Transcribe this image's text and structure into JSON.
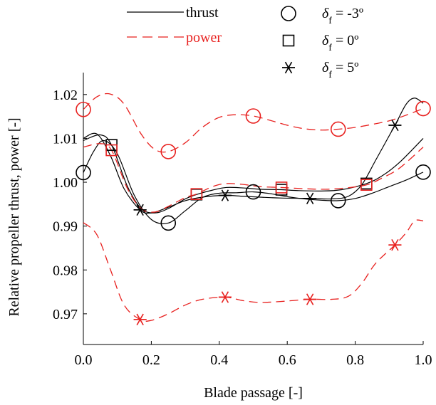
{
  "chart_data": {
    "type": "line",
    "xlabel": "Blade passage [-]",
    "ylabel": "Relative propeller thrust, power [-]",
    "xlim": [
      0.0,
      1.0
    ],
    "ylim": [
      0.963,
      1.025
    ],
    "xticks": [
      "0.0",
      "0.2",
      "0.4",
      "0.6",
      "0.8",
      "1.0"
    ],
    "yticks": [
      "0.97",
      "0.98",
      "0.99",
      "1.00",
      "1.01",
      "1.02"
    ],
    "grid": false,
    "legend": {
      "lines": [
        {
          "label": "thrust",
          "style": "solid",
          "color": "#000000"
        },
        {
          "label": "power",
          "style": "dashed",
          "color": "#e8211f"
        }
      ],
      "markers": [
        {
          "symbol": "circle",
          "prefix": "δ",
          "sub": "f",
          "value": " = -3º"
        },
        {
          "symbol": "square",
          "prefix": "δ",
          "sub": "f",
          "value": " =   0º"
        },
        {
          "symbol": "asterisk",
          "prefix": "δ",
          "sub": "f",
          "value": " =   5º"
        }
      ]
    },
    "colors": {
      "thrust": "#000000",
      "power": "#e8211f"
    },
    "series": [
      {
        "quantity": "thrust",
        "marker": "circle",
        "points": [
          [
            0.0,
            1.0022
          ],
          [
            0.25,
            0.9907
          ],
          [
            0.5,
            0.9978
          ],
          [
            0.75,
            0.9958
          ],
          [
            1.0,
            1.0023
          ]
        ],
        "curve": [
          [
            0.0,
            1.0022
          ],
          [
            0.03,
            1.007
          ],
          [
            0.06,
            1.0095
          ],
          [
            0.1,
            1.0065
          ],
          [
            0.15,
            0.997
          ],
          [
            0.2,
            0.9915
          ],
          [
            0.25,
            0.9907
          ],
          [
            0.3,
            0.9935
          ],
          [
            0.35,
            0.9965
          ],
          [
            0.4,
            0.9975
          ],
          [
            0.45,
            0.9976
          ],
          [
            0.5,
            0.9978
          ],
          [
            0.55,
            0.9974
          ],
          [
            0.6,
            0.9967
          ],
          [
            0.65,
            0.9962
          ],
          [
            0.7,
            0.9959
          ],
          [
            0.75,
            0.9958
          ],
          [
            0.8,
            0.9963
          ],
          [
            0.85,
            0.9975
          ],
          [
            0.9,
            0.999
          ],
          [
            0.95,
            1.0005
          ],
          [
            1.0,
            1.0023
          ]
        ]
      },
      {
        "quantity": "thrust",
        "marker": "square",
        "points": [
          [
            0.083,
            1.0085
          ],
          [
            0.333,
            0.9972
          ],
          [
            0.583,
            0.9983
          ],
          [
            0.833,
            0.9997
          ]
        ],
        "curve": [
          [
            0.0,
            1.0095
          ],
          [
            0.05,
            1.0108
          ],
          [
            0.083,
            1.0085
          ],
          [
            0.13,
            0.999
          ],
          [
            0.17,
            0.994
          ],
          [
            0.21,
            0.993
          ],
          [
            0.25,
            0.994
          ],
          [
            0.3,
            0.9962
          ],
          [
            0.333,
            0.9972
          ],
          [
            0.38,
            0.9982
          ],
          [
            0.42,
            0.9988
          ],
          [
            0.47,
            0.9987
          ],
          [
            0.52,
            0.9984
          ],
          [
            0.583,
            0.9983
          ],
          [
            0.63,
            0.9981
          ],
          [
            0.7,
            0.998
          ],
          [
            0.76,
            0.9983
          ],
          [
            0.833,
            0.9997
          ],
          [
            0.88,
            1.0015
          ],
          [
            0.93,
            1.0045
          ],
          [
            1.0,
            1.01
          ]
        ]
      },
      {
        "quantity": "thrust",
        "marker": "asterisk",
        "points": [
          [
            0.167,
            0.9937
          ],
          [
            0.417,
            0.997
          ],
          [
            0.667,
            0.9963
          ],
          [
            0.917,
            1.013
          ]
        ],
        "curve": [
          [
            0.0,
            1.01
          ],
          [
            0.04,
            1.011
          ],
          [
            0.08,
            1.006
          ],
          [
            0.12,
            0.9985
          ],
          [
            0.167,
            0.9937
          ],
          [
            0.2,
            0.993
          ],
          [
            0.25,
            0.9943
          ],
          [
            0.3,
            0.9958
          ],
          [
            0.35,
            0.9966
          ],
          [
            0.417,
            0.997
          ],
          [
            0.47,
            0.9968
          ],
          [
            0.52,
            0.9966
          ],
          [
            0.58,
            0.9964
          ],
          [
            0.667,
            0.9963
          ],
          [
            0.73,
            0.9962
          ],
          [
            0.78,
            0.9968
          ],
          [
            0.82,
            0.9995
          ],
          [
            0.86,
            1.005
          ],
          [
            0.917,
            1.013
          ],
          [
            0.95,
            1.0178
          ],
          [
            0.975,
            1.0192
          ],
          [
            1.0,
            1.018
          ]
        ]
      },
      {
        "quantity": "power",
        "marker": "circle",
        "points": [
          [
            0.0,
            1.0166
          ],
          [
            0.25,
            1.007
          ],
          [
            0.5,
            1.0151
          ],
          [
            0.75,
            1.0121
          ],
          [
            1.0,
            1.0168
          ]
        ],
        "curve": [
          [
            0.0,
            1.0166
          ],
          [
            0.04,
            1.0195
          ],
          [
            0.08,
            1.0201
          ],
          [
            0.12,
            1.0178
          ],
          [
            0.17,
            1.011
          ],
          [
            0.21,
            1.0075
          ],
          [
            0.25,
            1.007
          ],
          [
            0.3,
            1.009
          ],
          [
            0.35,
            1.0125
          ],
          [
            0.4,
            1.0148
          ],
          [
            0.45,
            1.0154
          ],
          [
            0.5,
            1.0151
          ],
          [
            0.55,
            1.0141
          ],
          [
            0.6,
            1.013
          ],
          [
            0.65,
            1.0122
          ],
          [
            0.7,
            1.0119
          ],
          [
            0.75,
            1.0121
          ],
          [
            0.8,
            1.0125
          ],
          [
            0.85,
            1.0132
          ],
          [
            0.9,
            1.014
          ],
          [
            0.95,
            1.0153
          ],
          [
            1.0,
            1.0168
          ]
        ]
      },
      {
        "quantity": "power",
        "marker": "square",
        "points": [
          [
            0.083,
            1.0073
          ],
          [
            0.333,
            0.9973
          ],
          [
            0.583,
            0.9988
          ],
          [
            0.833,
            0.9994
          ]
        ],
        "curve": [
          [
            0.0,
            1.008
          ],
          [
            0.05,
            1.0088
          ],
          [
            0.083,
            1.0073
          ],
          [
            0.13,
            0.9985
          ],
          [
            0.17,
            0.994
          ],
          [
            0.21,
            0.9932
          ],
          [
            0.25,
            0.9945
          ],
          [
            0.3,
            0.9965
          ],
          [
            0.333,
            0.9973
          ],
          [
            0.38,
            0.999
          ],
          [
            0.42,
            0.9997
          ],
          [
            0.47,
            0.9995
          ],
          [
            0.52,
            0.999
          ],
          [
            0.583,
            0.9988
          ],
          [
            0.63,
            0.9986
          ],
          [
            0.7,
            0.9984
          ],
          [
            0.76,
            0.9986
          ],
          [
            0.833,
            0.9994
          ],
          [
            0.88,
            1.001
          ],
          [
            0.93,
            1.0032
          ],
          [
            1.0,
            1.008
          ]
        ]
      },
      {
        "quantity": "power",
        "marker": "asterisk",
        "points": [
          [
            0.167,
            0.9687
          ],
          [
            0.417,
            0.9738
          ],
          [
            0.667,
            0.9733
          ],
          [
            0.917,
            0.9857
          ]
        ],
        "curve": [
          [
            0.0,
            0.9908
          ],
          [
            0.04,
            0.988
          ],
          [
            0.08,
            0.98
          ],
          [
            0.12,
            0.972
          ],
          [
            0.167,
            0.9687
          ],
          [
            0.2,
            0.9685
          ],
          [
            0.25,
            0.97
          ],
          [
            0.3,
            0.972
          ],
          [
            0.35,
            0.9733
          ],
          [
            0.417,
            0.9738
          ],
          [
            0.47,
            0.973
          ],
          [
            0.52,
            0.9726
          ],
          [
            0.58,
            0.9728
          ],
          [
            0.667,
            0.9733
          ],
          [
            0.73,
            0.9733
          ],
          [
            0.78,
            0.974
          ],
          [
            0.82,
            0.977
          ],
          [
            0.86,
            0.9815
          ],
          [
            0.917,
            0.9857
          ],
          [
            0.95,
            0.9885
          ],
          [
            0.975,
            0.9912
          ],
          [
            1.0,
            0.9912
          ]
        ]
      }
    ]
  }
}
